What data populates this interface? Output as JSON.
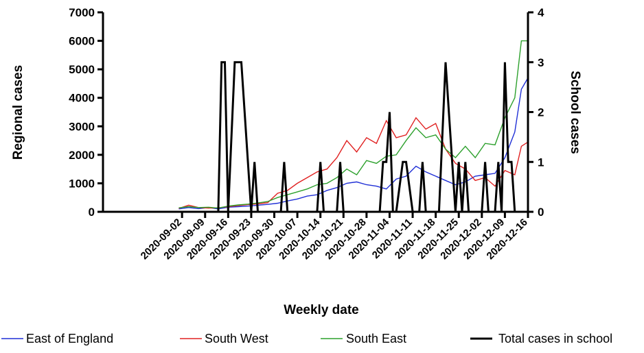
{
  "chart_data": {
    "type": "line",
    "xlabel": "Weekly date",
    "ylabel_left": "Regional cases",
    "ylabel_right": "School cases",
    "ylim_left": [
      0,
      7000
    ],
    "ylim_right": [
      0,
      4
    ],
    "y_ticks_left": [
      0,
      1000,
      2000,
      3000,
      4000,
      5000,
      6000,
      7000
    ],
    "y_ticks_right": [
      0,
      1,
      2,
      3,
      4
    ],
    "x_ticks": [
      "2020-09-02",
      "2020-09-09",
      "2020-09-16",
      "2020-09-23",
      "2020-09-30",
      "2020-10-07",
      "2020-10-14",
      "2020-10-21",
      "2020-10-28",
      "2020-11-04",
      "2020-11-11",
      "2020-11-18",
      "2020-11-25",
      "2020-12-02",
      "2020-12-09",
      "2020-12-16"
    ],
    "x_range": [
      "2020-08-09",
      "2020-12-16"
    ],
    "grid": false,
    "legend_position": "bottom",
    "series": [
      {
        "name": "East of England",
        "axis": "left",
        "color": "#1f2fd6",
        "points": [
          [
            "2020-09-01",
            100
          ],
          [
            "2020-09-04",
            150
          ],
          [
            "2020-09-07",
            110
          ],
          [
            "2020-09-10",
            150
          ],
          [
            "2020-09-13",
            100
          ],
          [
            "2020-09-16",
            160
          ],
          [
            "2020-09-19",
            180
          ],
          [
            "2020-09-22",
            200
          ],
          [
            "2020-09-25",
            230
          ],
          [
            "2020-09-28",
            260
          ],
          [
            "2020-10-01",
            300
          ],
          [
            "2020-10-04",
            380
          ],
          [
            "2020-10-07",
            450
          ],
          [
            "2020-10-10",
            550
          ],
          [
            "2020-10-13",
            600
          ],
          [
            "2020-10-16",
            750
          ],
          [
            "2020-10-19",
            850
          ],
          [
            "2020-10-22",
            1000
          ],
          [
            "2020-10-25",
            1050
          ],
          [
            "2020-10-28",
            950
          ],
          [
            "2020-10-31",
            900
          ],
          [
            "2020-11-03",
            800
          ],
          [
            "2020-11-06",
            1150
          ],
          [
            "2020-11-09",
            1250
          ],
          [
            "2020-11-12",
            1600
          ],
          [
            "2020-11-15",
            1400
          ],
          [
            "2020-11-18",
            1250
          ],
          [
            "2020-11-21",
            1100
          ],
          [
            "2020-11-24",
            950
          ],
          [
            "2020-11-27",
            1050
          ],
          [
            "2020-11-30",
            1250
          ],
          [
            "2020-12-03",
            1300
          ],
          [
            "2020-12-06",
            1350
          ],
          [
            "2020-12-09",
            1900
          ],
          [
            "2020-12-12",
            2800
          ],
          [
            "2020-12-14",
            4300
          ],
          [
            "2020-12-16",
            4700
          ]
        ]
      },
      {
        "name": "South West",
        "axis": "left",
        "color": "#e02020",
        "points": [
          [
            "2020-09-01",
            120
          ],
          [
            "2020-09-04",
            230
          ],
          [
            "2020-09-07",
            150
          ],
          [
            "2020-09-10",
            130
          ],
          [
            "2020-09-13",
            140
          ],
          [
            "2020-09-16",
            180
          ],
          [
            "2020-09-19",
            220
          ],
          [
            "2020-09-22",
            250
          ],
          [
            "2020-09-25",
            280
          ],
          [
            "2020-09-28",
            320
          ],
          [
            "2020-10-01",
            650
          ],
          [
            "2020-10-04",
            750
          ],
          [
            "2020-10-07",
            1000
          ],
          [
            "2020-10-10",
            1200
          ],
          [
            "2020-10-13",
            1400
          ],
          [
            "2020-10-16",
            1500
          ],
          [
            "2020-10-19",
            1900
          ],
          [
            "2020-10-22",
            2500
          ],
          [
            "2020-10-25",
            2100
          ],
          [
            "2020-10-28",
            2600
          ],
          [
            "2020-10-31",
            2400
          ],
          [
            "2020-11-03",
            3200
          ],
          [
            "2020-11-06",
            2600
          ],
          [
            "2020-11-09",
            2700
          ],
          [
            "2020-11-12",
            3300
          ],
          [
            "2020-11-15",
            2900
          ],
          [
            "2020-11-18",
            3100
          ],
          [
            "2020-11-21",
            2200
          ],
          [
            "2020-11-24",
            1700
          ],
          [
            "2020-11-27",
            1500
          ],
          [
            "2020-11-30",
            1100
          ],
          [
            "2020-12-03",
            1200
          ],
          [
            "2020-12-06",
            900
          ],
          [
            "2020-12-09",
            1450
          ],
          [
            "2020-12-12",
            1300
          ],
          [
            "2020-12-14",
            2300
          ],
          [
            "2020-12-16",
            2450
          ]
        ]
      },
      {
        "name": "South East",
        "axis": "left",
        "color": "#2ca02c",
        "points": [
          [
            "2020-09-01",
            140
          ],
          [
            "2020-09-04",
            180
          ],
          [
            "2020-09-07",
            150
          ],
          [
            "2020-09-10",
            160
          ],
          [
            "2020-09-13",
            130
          ],
          [
            "2020-09-16",
            200
          ],
          [
            "2020-09-19",
            240
          ],
          [
            "2020-09-22",
            270
          ],
          [
            "2020-09-25",
            310
          ],
          [
            "2020-09-28",
            360
          ],
          [
            "2020-10-01",
            500
          ],
          [
            "2020-10-04",
            600
          ],
          [
            "2020-10-07",
            700
          ],
          [
            "2020-10-10",
            800
          ],
          [
            "2020-10-13",
            950
          ],
          [
            "2020-10-16",
            1000
          ],
          [
            "2020-10-19",
            1200
          ],
          [
            "2020-10-22",
            1500
          ],
          [
            "2020-10-25",
            1300
          ],
          [
            "2020-10-28",
            1800
          ],
          [
            "2020-10-31",
            1700
          ],
          [
            "2020-11-03",
            1950
          ],
          [
            "2020-11-06",
            2000
          ],
          [
            "2020-11-09",
            2500
          ],
          [
            "2020-11-12",
            2950
          ],
          [
            "2020-11-15",
            2600
          ],
          [
            "2020-11-18",
            2700
          ],
          [
            "2020-11-21",
            2200
          ],
          [
            "2020-11-24",
            1900
          ],
          [
            "2020-11-27",
            2300
          ],
          [
            "2020-11-30",
            1900
          ],
          [
            "2020-12-03",
            2400
          ],
          [
            "2020-12-06",
            2350
          ],
          [
            "2020-12-09",
            3300
          ],
          [
            "2020-12-12",
            4000
          ],
          [
            "2020-12-14",
            6000
          ],
          [
            "2020-12-16",
            6000
          ]
        ]
      },
      {
        "name": "Total cases in school",
        "axis": "right",
        "color": "#000000",
        "points": [
          [
            "2020-09-13",
            0
          ],
          [
            "2020-09-14",
            3
          ],
          [
            "2020-09-15",
            3
          ],
          [
            "2020-09-16",
            0
          ],
          [
            "2020-09-18",
            3
          ],
          [
            "2020-09-20",
            3
          ],
          [
            "2020-09-23",
            0
          ],
          [
            "2020-09-24",
            1
          ],
          [
            "2020-09-25",
            0
          ],
          [
            "2020-10-02",
            0
          ],
          [
            "2020-10-03",
            1
          ],
          [
            "2020-10-04",
            0
          ],
          [
            "2020-10-13",
            0
          ],
          [
            "2020-10-14",
            1
          ],
          [
            "2020-10-15",
            0
          ],
          [
            "2020-10-19",
            0
          ],
          [
            "2020-10-20",
            1
          ],
          [
            "2020-10-21",
            0
          ],
          [
            "2020-11-01",
            0
          ],
          [
            "2020-11-02",
            1
          ],
          [
            "2020-11-03",
            1
          ],
          [
            "2020-11-04",
            2
          ],
          [
            "2020-11-05",
            0
          ],
          [
            "2020-11-06",
            0
          ],
          [
            "2020-11-08",
            1
          ],
          [
            "2020-11-09",
            1
          ],
          [
            "2020-11-11",
            0
          ],
          [
            "2020-11-13",
            0
          ],
          [
            "2020-11-14",
            1
          ],
          [
            "2020-11-15",
            0
          ],
          [
            "2020-11-19",
            0
          ],
          [
            "2020-11-21",
            3
          ],
          [
            "2020-11-24",
            0
          ],
          [
            "2020-11-25",
            1
          ],
          [
            "2020-11-26",
            0
          ],
          [
            "2020-11-27",
            1
          ],
          [
            "2020-11-28",
            0
          ],
          [
            "2020-12-02",
            0
          ],
          [
            "2020-12-03",
            1
          ],
          [
            "2020-12-04",
            0
          ],
          [
            "2020-12-06",
            0
          ],
          [
            "2020-12-07",
            1
          ],
          [
            "2020-12-08",
            0
          ],
          [
            "2020-12-09",
            3
          ],
          [
            "2020-12-10",
            1
          ],
          [
            "2020-12-11",
            1
          ],
          [
            "2020-12-12",
            0
          ]
        ]
      }
    ]
  }
}
